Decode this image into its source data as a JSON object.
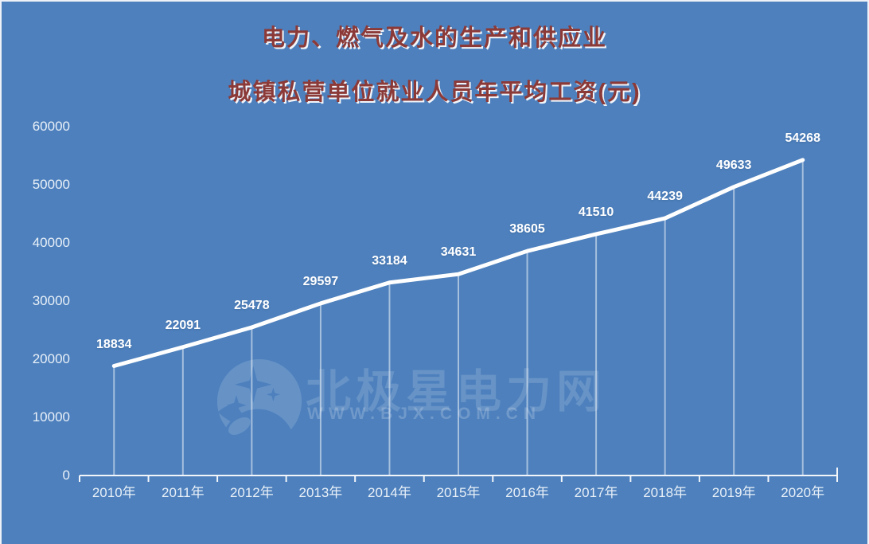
{
  "title": {
    "line1": "电力、燃气及水的生产和供应业",
    "line2": "城镇私营单位就业人员年平均工资(元)"
  },
  "watermark": {
    "brand": "北极星电力网",
    "url": "WWW.BJX.COM.CN",
    "logo": "bjx-star-moon-logo"
  },
  "colors": {
    "background": "#4d80bd",
    "title_text": "#8c3a38",
    "title_shadow": "#ffffff",
    "series_line": "#ffffff",
    "axis_line": "#f2f6fb",
    "drop_line": "rgba(255,255,255,0.5)",
    "label_text": "#ffffff",
    "tick_label_text": "#e9f0f8"
  },
  "chart_data": {
    "type": "line",
    "title": "电力、燃气及水的生产和供应业 城镇私营单位就业人员年平均工资(元)",
    "categories": [
      "2010年",
      "2011年",
      "2012年",
      "2013年",
      "2014年",
      "2015年",
      "2016年",
      "2017年",
      "2018年",
      "2019年",
      "2020年"
    ],
    "series": [
      {
        "name": "城镇私营单位就业人员年平均工资(元)",
        "values": [
          18834,
          22091,
          25478,
          29597,
          33184,
          34631,
          38605,
          41510,
          44239,
          49633,
          54268
        ]
      }
    ],
    "xlabel": "",
    "ylabel": "",
    "ylim": [
      0,
      60000
    ],
    "yticks": [
      0,
      10000,
      20000,
      30000,
      40000,
      50000,
      60000
    ],
    "grid": false,
    "legend": false,
    "data_labels": true,
    "drop_lines": true,
    "line_color": "#ffffff",
    "line_width": 5
  }
}
